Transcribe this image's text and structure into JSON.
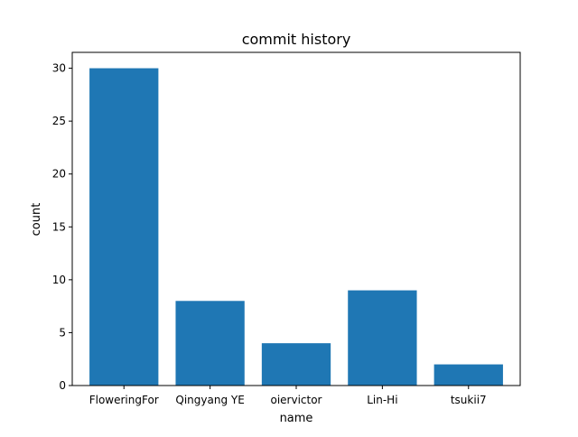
{
  "chart_data": {
    "type": "bar",
    "title": "commit history",
    "xlabel": "name",
    "ylabel": "count",
    "categories": [
      "FloweringFor",
      "Qingyang YE",
      "oiervictor",
      "Lin-Hi",
      "tsukii7"
    ],
    "values": [
      30,
      8,
      4,
      9,
      2
    ],
    "ylim": [
      0,
      31.5
    ],
    "yticks": [
      0,
      5,
      10,
      15,
      20,
      25,
      30
    ],
    "grid": false,
    "bar_color": "#1f77b4"
  }
}
